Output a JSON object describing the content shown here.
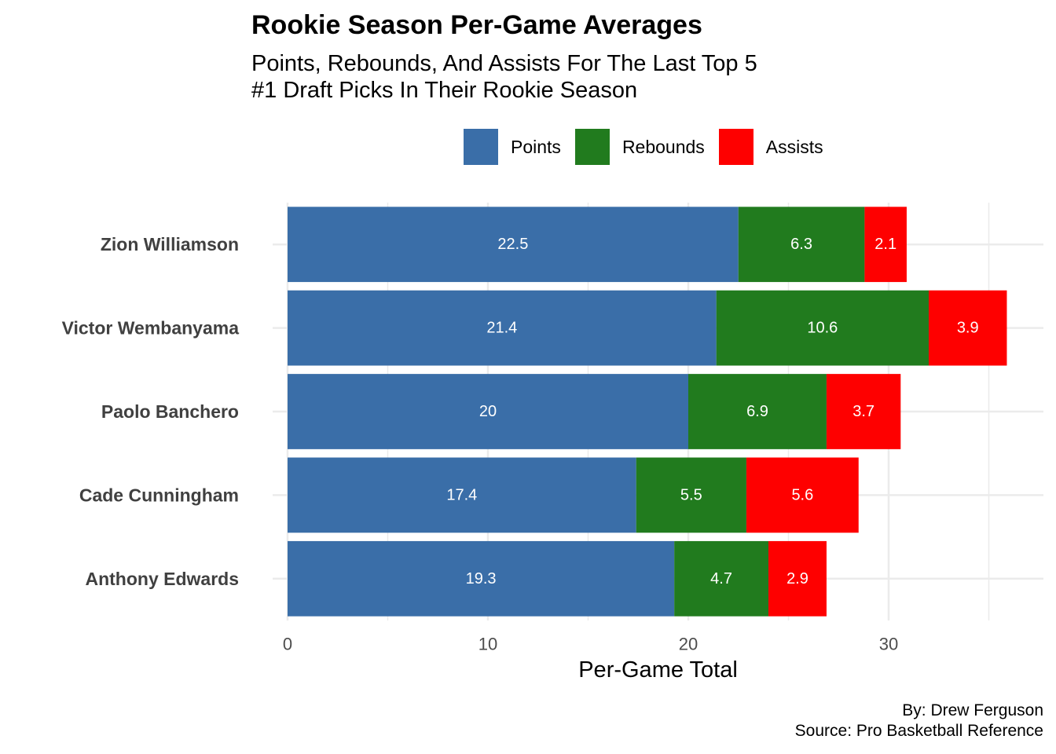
{
  "chart_data": {
    "type": "bar",
    "orientation": "horizontal",
    "stacked": true,
    "title": "Rookie Season Per-Game Averages",
    "subtitle_lines": [
      "Points, Rebounds, And Assists For The Last Top 5",
      "#1 Draft Picks In Their Rookie Season"
    ],
    "xlabel": "Per-Game Total",
    "ylabel": "",
    "xlim": [
      0,
      36
    ],
    "x_ticks": [
      0,
      10,
      20,
      30
    ],
    "grid": true,
    "legend_position": "top",
    "categories": [
      "Zion Williamson",
      "Victor Wembanyama",
      "Paolo Banchero",
      "Cade Cunningham",
      "Anthony Edwards"
    ],
    "series": [
      {
        "name": "Points",
        "color": "#3A6EA8",
        "values": [
          22.5,
          21.4,
          20,
          17.4,
          19.3
        ]
      },
      {
        "name": "Rebounds",
        "color": "#217B1E",
        "values": [
          6.3,
          10.6,
          6.9,
          5.5,
          4.7
        ]
      },
      {
        "name": "Assists",
        "color": "#FE0000",
        "values": [
          2.1,
          3.9,
          3.7,
          5.6,
          2.9
        ]
      }
    ],
    "caption_lines": [
      "By: Drew Ferguson",
      "Source: Pro Basketball Reference"
    ]
  }
}
